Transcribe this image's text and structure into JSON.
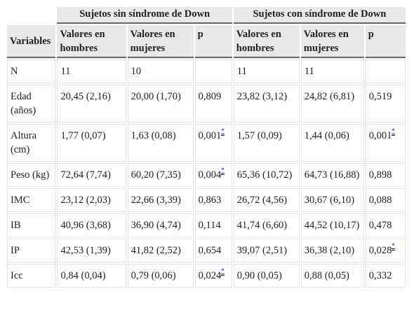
{
  "header": {
    "variables": "Variables",
    "groups": [
      "Sujetos sin síndrome de Down",
      "Sujetos con síndrome de Down"
    ],
    "columns": [
      "Valores en hombres",
      "Valores en mujeres",
      "p",
      "Valores en hombres",
      "Valores en mujeres",
      "p"
    ]
  },
  "sig_marker": "*",
  "rows": [
    {
      "var": "N",
      "cells": [
        "11",
        "10",
        "",
        "11",
        "11",
        ""
      ],
      "sig": [
        false,
        false,
        false,
        false,
        false,
        false
      ]
    },
    {
      "var": "Edad (años)",
      "cells": [
        "20,45 (2,16)",
        "20,00 (1,70)",
        "0,809",
        "23,82 (3,12)",
        "24,82 (6,81)",
        "0,519"
      ],
      "sig": [
        false,
        false,
        false,
        false,
        false,
        false
      ]
    },
    {
      "var": "Altura (cm)",
      "cells": [
        "1,77 (0,07)",
        "1,63 (0,08)",
        "0,001",
        "1,57 (0,09)",
        "1,44 (0,06)",
        "0,001"
      ],
      "sig": [
        false,
        false,
        true,
        false,
        false,
        true
      ]
    },
    {
      "var": "Peso (kg)",
      "cells": [
        "72,64 (7,74)",
        "60,20 (7,35)",
        "0,004",
        "65,36 (10,72)",
        "64,73 (16,88)",
        "0,898"
      ],
      "sig": [
        false,
        false,
        true,
        false,
        false,
        false
      ]
    },
    {
      "var": "IMC",
      "cells": [
        "23,12 (2,03)",
        "22,66 (3,39)",
        "0,863",
        "26,72 (4,56)",
        "30,67 (6,10)",
        "0,088"
      ],
      "sig": [
        false,
        false,
        false,
        false,
        false,
        false
      ]
    },
    {
      "var": "IB",
      "cells": [
        "40,96 (3,68)",
        "36,90 (4,74)",
        "0,114",
        "41,74 (6,60)",
        "44,52 (10,17)",
        "0,478"
      ],
      "sig": [
        false,
        false,
        false,
        false,
        false,
        false
      ]
    },
    {
      "var": "IP",
      "cells": [
        "42,53 (1,39)",
        "41,82 (2,52)",
        "0,654",
        "39,07 (2,51)",
        "36,38 (2,10)",
        "0,028"
      ],
      "sig": [
        false,
        false,
        false,
        false,
        false,
        true
      ]
    },
    {
      "var": "Icc",
      "cells": [
        "0,84 (0,04)",
        "0,79 (0,06)",
        "0,024",
        "0,90 (0,05)",
        "0,88 (0,05)",
        "0,332"
      ],
      "sig": [
        false,
        false,
        true,
        false,
        false,
        false
      ]
    }
  ]
}
